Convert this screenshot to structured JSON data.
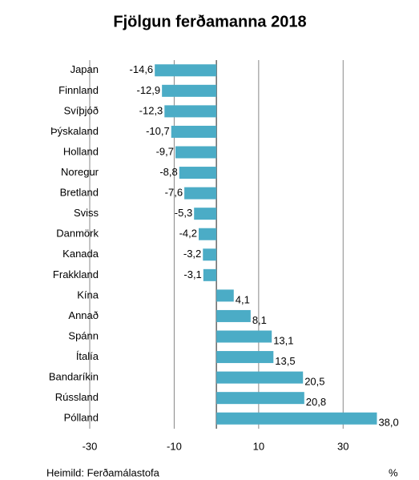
{
  "chart_data": {
    "type": "hbar",
    "title": "Fjölgun ferðamanna 2018",
    "categories": [
      "Japan",
      "Finnland",
      "Svíþjóð",
      "Þýskaland",
      "Holland",
      "Noregur",
      "Bretland",
      "Sviss",
      "Danmörk",
      "Kanada",
      "Frakkland",
      "Kína",
      "Annað",
      "Spánn",
      "Ítalía",
      "Bandaríkin",
      "Rússland",
      "Pólland"
    ],
    "values": [
      -14.6,
      -12.9,
      -12.3,
      -10.7,
      -9.7,
      -8.8,
      -7.6,
      -5.3,
      -4.2,
      -3.2,
      -3.1,
      4.1,
      8.1,
      13.1,
      13.5,
      20.5,
      20.8,
      38.0
    ],
    "value_labels": [
      "-14,6",
      "-12,9",
      "-12,3",
      "-10,7",
      "-9,7",
      "-8,8",
      "-7,6",
      "-5,3",
      "-4,2",
      "-3,2",
      "-3,1",
      "4,1",
      "8,1",
      "13,1",
      "13,5",
      "20,5",
      "20,8",
      "38,0"
    ],
    "color": "#4bacc6",
    "xlim": [
      -30,
      40
    ],
    "xticks": [
      -30,
      -10,
      10,
      30
    ],
    "grid": true,
    "source": "Heimild: Ferðamálastofa",
    "unit_label": "%"
  }
}
